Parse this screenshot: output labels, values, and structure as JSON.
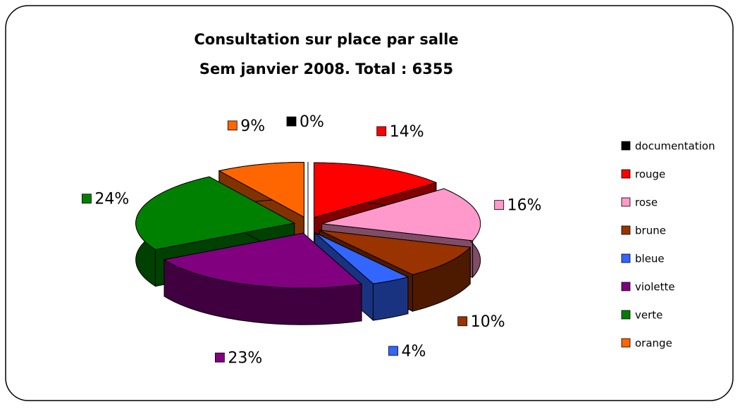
{
  "chart_data": {
    "type": "pie",
    "title": [
      "Consultation sur place par salle",
      "Sem janvier 2008. Total : 6355"
    ],
    "categories": [
      "documentation",
      "rouge",
      "rose",
      "brune",
      "bleue",
      "violette",
      "verte",
      "orange"
    ],
    "values": [
      0,
      14,
      16,
      10,
      4,
      23,
      24,
      9
    ],
    "value_labels": [
      "0%",
      "14%",
      "16%",
      "10%",
      "4%",
      "23%",
      "24%",
      "9%"
    ],
    "colors": [
      "#000000",
      "#ff0000",
      "#ff99cc",
      "#993300",
      "#3366ff",
      "#800080",
      "#008000",
      "#ff6600"
    ],
    "legend": "right"
  }
}
